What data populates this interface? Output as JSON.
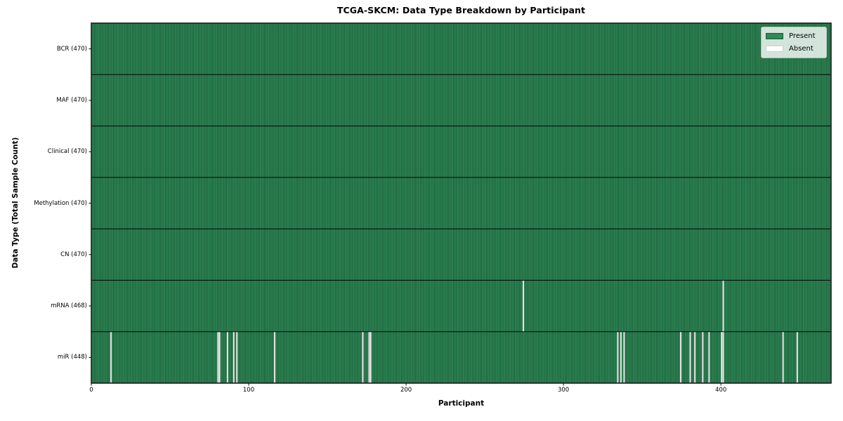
{
  "chart_data": {
    "type": "heatmap",
    "title": "TCGA-SKCM: Data Type Breakdown by Participant",
    "xlabel": "Participant",
    "ylabel": "Data Type (Total Sample Count)",
    "n_participants": 470,
    "x_range": [
      0,
      470
    ],
    "x_ticks": [
      0,
      100,
      200,
      300,
      400
    ],
    "rows": [
      {
        "label": "BCR (470)",
        "present_count": 470,
        "absent_participants": []
      },
      {
        "label": "MAF (470)",
        "present_count": 470,
        "absent_participants": []
      },
      {
        "label": "Clinical (470)",
        "present_count": 470,
        "absent_participants": []
      },
      {
        "label": "Methylation (470)",
        "present_count": 470,
        "absent_participants": []
      },
      {
        "label": "CN (470)",
        "present_count": 470,
        "absent_participants": []
      },
      {
        "label": "mRNA (468)",
        "present_count": 468,
        "absent_participants": [
          274,
          401
        ]
      },
      {
        "label": "miR (448)",
        "present_count": 448,
        "absent_participants": [
          12,
          80,
          81,
          86,
          90,
          92,
          116,
          172,
          176,
          177,
          334,
          336,
          338,
          374,
          380,
          383,
          388,
          392,
          400,
          401,
          439,
          448
        ]
      }
    ],
    "legend": {
      "position": "upper right",
      "entries": [
        {
          "label": "Present",
          "color": "#2e8b57"
        },
        {
          "label": "Absent",
          "color": "#ffffff"
        }
      ]
    },
    "colors": {
      "present": "#2e8b57",
      "absent": "#ffffff",
      "cell_edge": "rgba(0,0,0,0.55)",
      "row_divider": "rgba(0,0,0,0.85)",
      "frame": "#1a1a1a",
      "background": "#ffffff"
    },
    "grid": "cell-borders-only"
  }
}
